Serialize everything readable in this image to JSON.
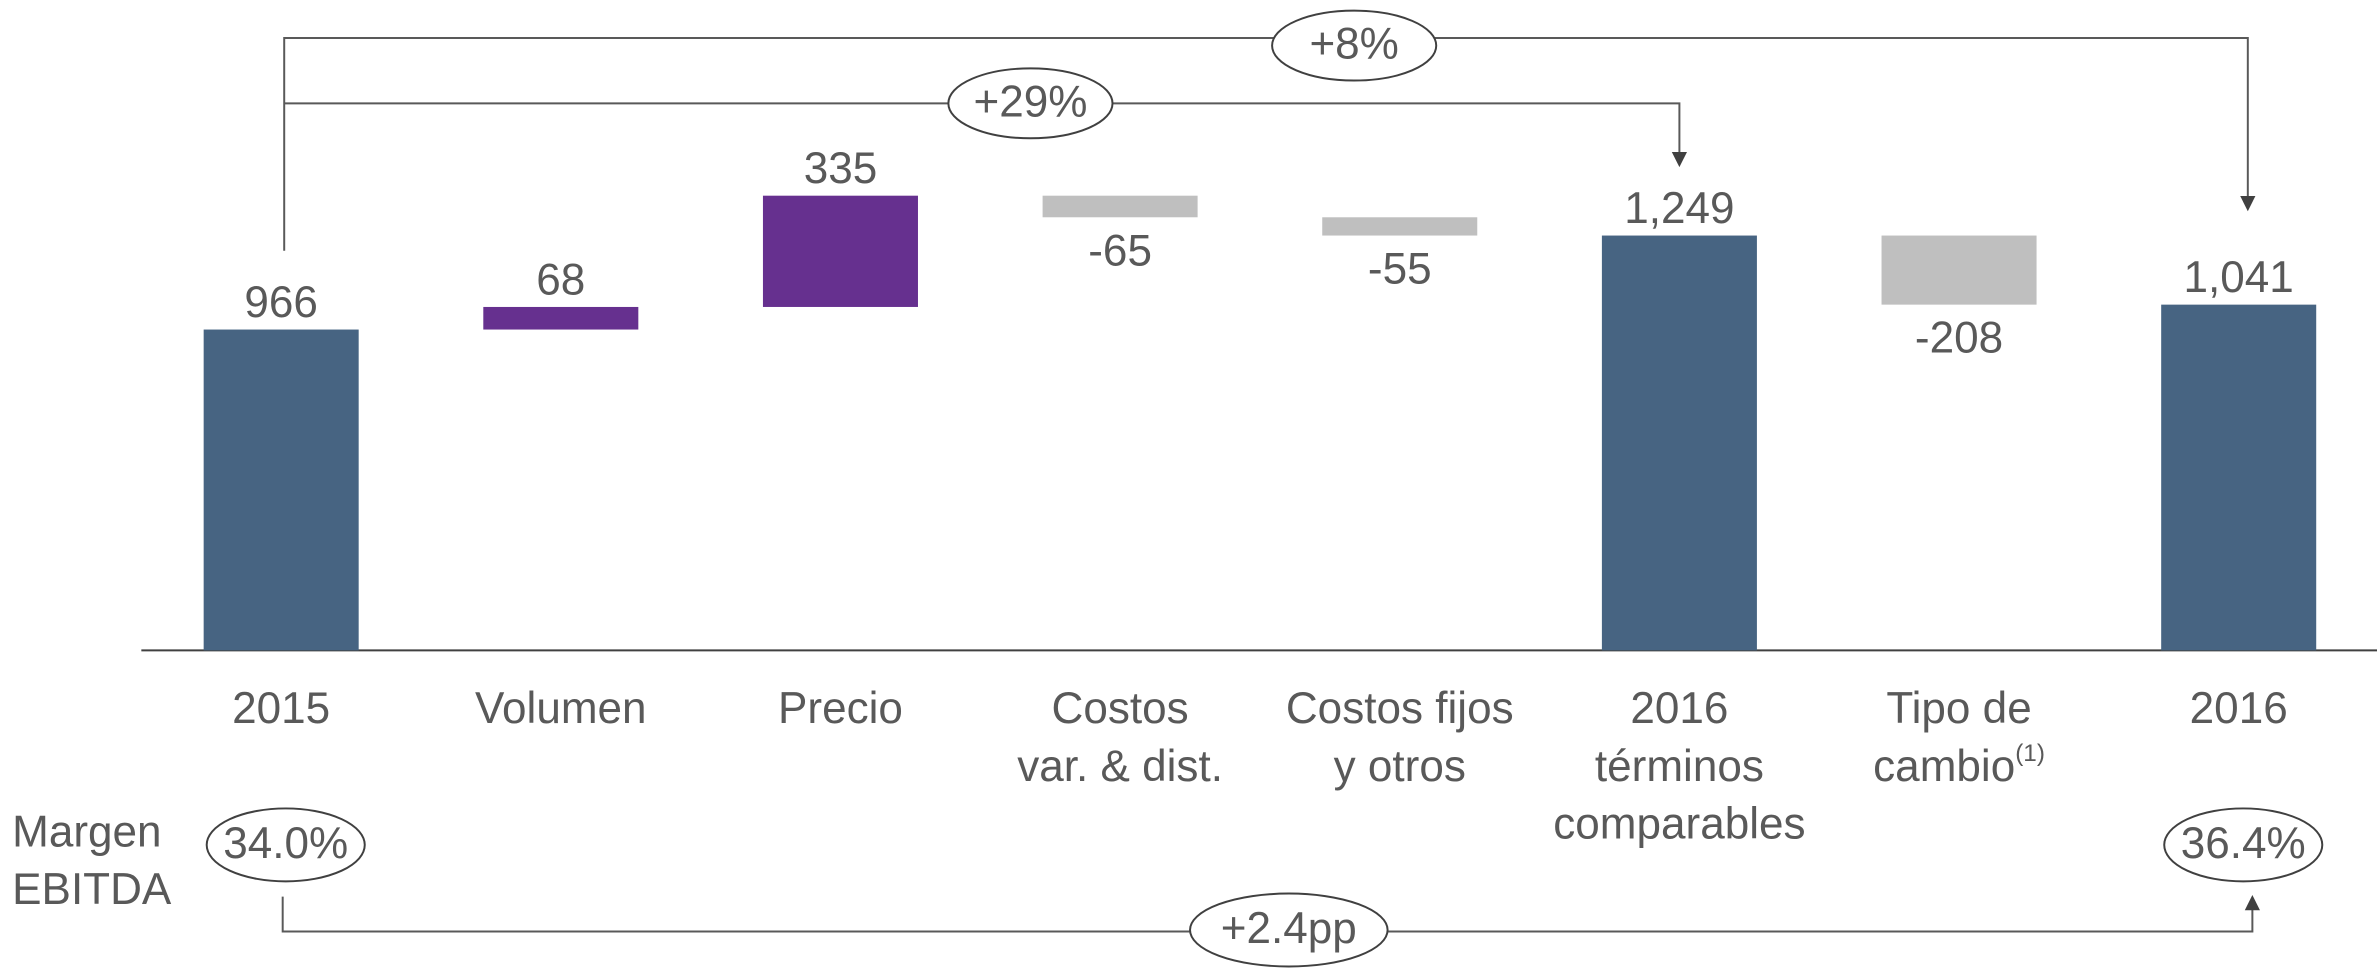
{
  "chart_data": {
    "type": "waterfall",
    "categories": [
      "2015",
      "Volumen",
      "Precio",
      "Costos\nvar. & dist.",
      "Costos fijos\ny otros",
      "2016\ntérminos\ncomparables",
      "Tipo de\ncambio",
      "2016"
    ],
    "category_superscripts": [
      null,
      null,
      null,
      null,
      null,
      null,
      "(1)",
      null
    ],
    "values": [
      966,
      68,
      335,
      -65,
      -55,
      1249,
      -208,
      1041
    ],
    "value_labels": [
      "966",
      "68",
      "335",
      "-65",
      "-55",
      "1,249",
      "-208",
      "1,041"
    ],
    "bar_types": [
      "total",
      "increase",
      "increase",
      "decrease",
      "decrease",
      "total",
      "decrease",
      "total"
    ],
    "colors": {
      "total": "#476482",
      "increase": "#66308f",
      "decrease": "#bfbfbf"
    },
    "ylim": [
      0,
      1400
    ],
    "annotations": [
      "+8%",
      "+29%"
    ],
    "margin": {
      "label": "Margen\nEBITDA",
      "values": [
        34.0,
        36.4
      ],
      "value_labels": [
        "34.0%",
        "36.4%"
      ],
      "change_label": "+2.4pp"
    }
  }
}
